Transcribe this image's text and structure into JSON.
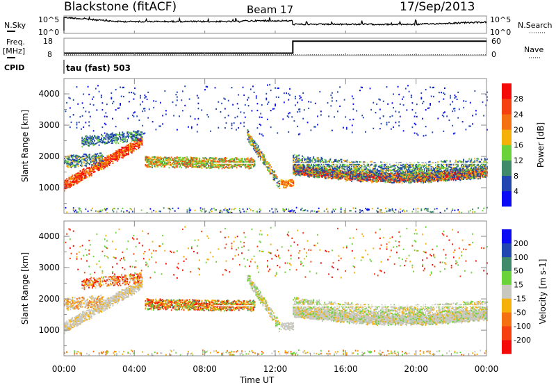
{
  "header": {
    "station": "Blackstone (fitACF)",
    "beam": "Beam 17",
    "date": "17/Sep/2013"
  },
  "noise_panel": {
    "left_label": "N.Sky",
    "right_label": "N.Search",
    "left_ticks": [
      "10^5",
      "10^0"
    ],
    "right_ticks": [
      "10^5",
      "10^0"
    ]
  },
  "freq_panel": {
    "left_label_1": "Freq.",
    "left_label_2": "[MHz]",
    "right_label": "Nave",
    "left_ticks": [
      "18",
      "8"
    ],
    "right_ticks": [
      "60",
      "0"
    ],
    "freq_series": [
      [
        0,
        9.4
      ],
      [
        13,
        9.4
      ],
      [
        13,
        16.3
      ],
      [
        24,
        16.3
      ]
    ],
    "nave_series": [
      [
        0,
        9.6
      ],
      [
        13,
        9.6
      ],
      [
        13,
        10
      ],
      [
        24,
        10
      ]
    ]
  },
  "cpid": {
    "label": "CPID",
    "value": "tau (fast) 503"
  },
  "chart_data": [
    {
      "type": "heatmap",
      "title": "Power",
      "ylabel": "Slant Range [km]",
      "xlabel": "Time UT",
      "xlim": [
        0,
        24
      ],
      "ylim": [
        180,
        4490
      ],
      "yticks": [
        "1000",
        "2000",
        "3000",
        "4000"
      ],
      "ytick_values": [
        1000,
        2000,
        3000,
        4000
      ],
      "xticks": [
        "00:00",
        "04:00",
        "08:00",
        "12:00",
        "16:00",
        "20:00",
        "00:00"
      ],
      "colorbar": {
        "label": "Power [dB]",
        "ticks": [
          "4",
          "8",
          "12",
          "16",
          "20",
          "24",
          "28"
        ],
        "colors": [
          "#0a0af5",
          "#2246b0",
          "#3f8a6a",
          "#6cd23a",
          "#f5b00a",
          "#f57010",
          "#f54010",
          "#f50a0a"
        ]
      },
      "echo_bands": [
        {
          "t0": 0,
          "t1": 4.4,
          "r0": 1100,
          "r1": 2500,
          "w": 300,
          "d": 0.8,
          "c": [
            5,
            6,
            7,
            7,
            4
          ]
        },
        {
          "t0": 0,
          "t1": 2.2,
          "r0": 1850,
          "r1": 1950,
          "w": 350,
          "d": 0.55,
          "c": [
            1,
            2,
            3,
            4,
            1
          ]
        },
        {
          "t0": 1.0,
          "t1": 4.4,
          "r0": 2500,
          "r1": 2700,
          "w": 300,
          "d": 0.45,
          "c": [
            1,
            2,
            3,
            1
          ]
        },
        {
          "t0": 4.6,
          "t1": 10.8,
          "r0": 1850,
          "r1": 1800,
          "w": 320,
          "d": 0.7,
          "c": [
            2,
            3,
            4,
            5,
            6,
            3
          ]
        },
        {
          "t0": 10.4,
          "t1": 12.2,
          "r0": 2700,
          "r1": 1150,
          "w": 300,
          "d": 0.6,
          "c": [
            1,
            2,
            3,
            4,
            5
          ]
        },
        {
          "t0": 12.3,
          "t1": 13.0,
          "r0": 1150,
          "r1": 1150,
          "w": 220,
          "d": 0.7,
          "c": [
            4,
            5,
            6
          ]
        },
        {
          "t0": 13.0,
          "t1": 24,
          "r0": 1600,
          "r1": 1650,
          "w": 260,
          "d": 0.9,
          "c": [
            5,
            6,
            7,
            7
          ]
        },
        {
          "t0": 13.0,
          "t1": 24,
          "r0": 1750,
          "r1": 1900,
          "w": 650,
          "d": 0.5,
          "c": [
            1,
            1,
            2,
            3,
            4
          ]
        },
        {
          "t0": 0,
          "t1": 24,
          "r0": 300,
          "r1": 300,
          "w": 150,
          "d": 0.12,
          "c": [
            0,
            1,
            2,
            3,
            4
          ]
        },
        {
          "t0": 0,
          "t1": 24,
          "r0": 3500,
          "r1": 3500,
          "w": 1600,
          "d": 0.02,
          "c": [
            0,
            1,
            1
          ]
        }
      ]
    },
    {
      "type": "heatmap",
      "title": "Velocity",
      "ylabel": "Slant Range [km]",
      "xlabel": "Time UT",
      "xlim": [
        0,
        24
      ],
      "ylim": [
        180,
        4490
      ],
      "yticks": [
        "1000",
        "2000",
        "3000",
        "4000"
      ],
      "ytick_values": [
        1000,
        2000,
        3000,
        4000
      ],
      "xticks": [
        "00:00",
        "04:00",
        "08:00",
        "12:00",
        "16:00",
        "20:00",
        "00:00"
      ],
      "colorbar": {
        "label": "Velocity [m s-1]",
        "ticks": [
          "200",
          "100",
          "50",
          "15",
          "-15",
          "-50",
          "-100",
          "-200"
        ],
        "colors": [
          "#0a0af5",
          "#2246b0",
          "#3f8a6a",
          "#6cd23a",
          "#c8c8c0",
          "#f5b00a",
          "#f57010",
          "#f54010",
          "#f50a0a"
        ]
      },
      "echo_bands": [
        {
          "t0": 0,
          "t1": 4.4,
          "r0": 1100,
          "r1": 2500,
          "w": 300,
          "d": 0.8,
          "c": [
            4,
            4,
            4,
            5
          ]
        },
        {
          "t0": 0,
          "t1": 2.2,
          "r0": 1850,
          "r1": 1950,
          "w": 350,
          "d": 0.5,
          "c": [
            4,
            4,
            5,
            6
          ]
        },
        {
          "t0": 1.0,
          "t1": 4.4,
          "r0": 2500,
          "r1": 2700,
          "w": 300,
          "d": 0.45,
          "c": [
            5,
            6,
            7,
            8,
            4
          ]
        },
        {
          "t0": 4.6,
          "t1": 10.8,
          "r0": 1850,
          "r1": 1800,
          "w": 320,
          "d": 0.7,
          "c": [
            5,
            6,
            7,
            8,
            3,
            2,
            5
          ]
        },
        {
          "t0": 10.4,
          "t1": 12.2,
          "r0": 2700,
          "r1": 1150,
          "w": 300,
          "d": 0.6,
          "c": [
            3,
            4,
            4,
            5
          ]
        },
        {
          "t0": 12.3,
          "t1": 13.0,
          "r0": 1150,
          "r1": 1150,
          "w": 220,
          "d": 0.7,
          "c": [
            4,
            4
          ]
        },
        {
          "t0": 13.0,
          "t1": 24,
          "r0": 1600,
          "r1": 1650,
          "w": 260,
          "d": 0.9,
          "c": [
            4
          ]
        },
        {
          "t0": 13.0,
          "t1": 24,
          "r0": 1750,
          "r1": 1900,
          "w": 650,
          "d": 0.5,
          "c": [
            4,
            4,
            4,
            3,
            5
          ]
        },
        {
          "t0": 0,
          "t1": 24,
          "r0": 300,
          "r1": 300,
          "w": 150,
          "d": 0.12,
          "c": [
            3,
            4,
            5,
            6
          ]
        },
        {
          "t0": 0,
          "t1": 24,
          "r0": 3500,
          "r1": 3500,
          "w": 1600,
          "d": 0.02,
          "c": [
            3,
            5,
            7,
            8
          ]
        }
      ]
    }
  ]
}
